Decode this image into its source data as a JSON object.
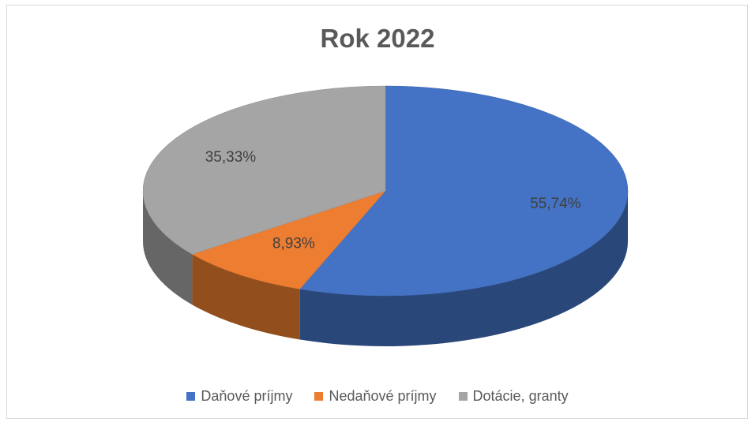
{
  "chart_data": {
    "type": "pie",
    "title": "Rok 2022",
    "categories": [
      "Daňové príjmy",
      "Nedaňové príjmy",
      "Dotácie, granty"
    ],
    "values": [
      55.74,
      8.93,
      35.33
    ],
    "data_labels": [
      "55,74%",
      "8,93%",
      "35,33%"
    ],
    "colors": [
      "#4472c4",
      "#ed7d31",
      "#a5a5a5"
    ],
    "legend": "bottom",
    "style": "3d"
  }
}
